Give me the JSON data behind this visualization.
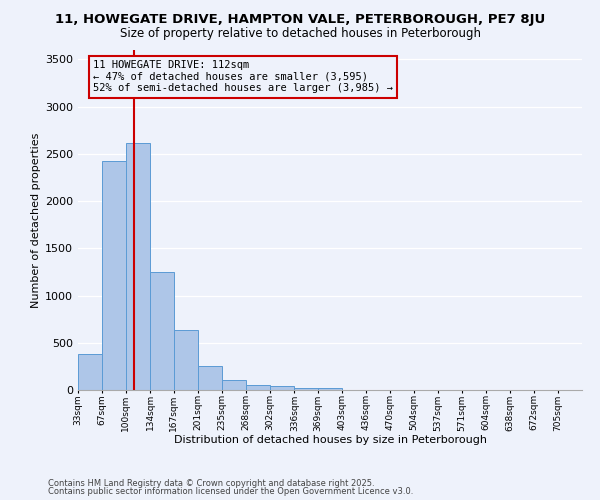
{
  "title": "11, HOWEGATE DRIVE, HAMPTON VALE, PETERBOROUGH, PE7 8JU",
  "subtitle": "Size of property relative to detached houses in Peterborough",
  "xlabel": "Distribution of detached houses by size in Peterborough",
  "ylabel": "Number of detached properties",
  "bin_labels": [
    "33sqm",
    "67sqm",
    "100sqm",
    "134sqm",
    "167sqm",
    "201sqm",
    "235sqm",
    "268sqm",
    "302sqm",
    "336sqm",
    "369sqm",
    "403sqm",
    "436sqm",
    "470sqm",
    "504sqm",
    "537sqm",
    "571sqm",
    "604sqm",
    "638sqm",
    "672sqm",
    "705sqm"
  ],
  "bin_edges": [
    33,
    67,
    100,
    134,
    167,
    201,
    235,
    268,
    302,
    336,
    369,
    403,
    436,
    470,
    504,
    537,
    571,
    604,
    638,
    672,
    705
  ],
  "bar_heights": [
    380,
    2420,
    2620,
    1250,
    640,
    255,
    105,
    55,
    40,
    25,
    20,
    5,
    2,
    1,
    0,
    0,
    0,
    0,
    0,
    0
  ],
  "bar_color": "#aec6e8",
  "bar_edge_color": "#5b9bd5",
  "property_size": 112,
  "vline_color": "#cc0000",
  "annotation_line1": "11 HOWEGATE DRIVE: 112sqm",
  "annotation_line2": "← 47% of detached houses are smaller (3,595)",
  "annotation_line3": "52% of semi-detached houses are larger (3,985) →",
  "annotation_box_color": "#cc0000",
  "ylim": [
    0,
    3600
  ],
  "yticks": [
    0,
    500,
    1000,
    1500,
    2000,
    2500,
    3000,
    3500
  ],
  "bg_color": "#eef2fb",
  "grid_color": "#ffffff",
  "footer_line1": "Contains HM Land Registry data © Crown copyright and database right 2025.",
  "footer_line2": "Contains public sector information licensed under the Open Government Licence v3.0."
}
